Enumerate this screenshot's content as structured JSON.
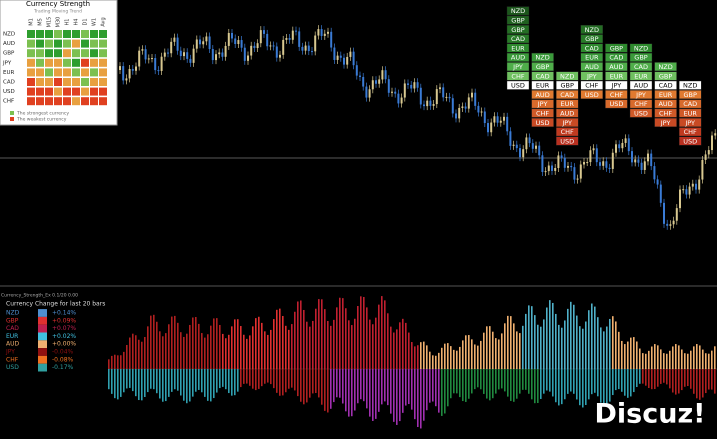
{
  "strength_panel": {
    "title": "Currency Strength",
    "subtitle": "Trading Moving Trend",
    "timeframes": [
      "M1",
      "M5",
      "M15",
      "M30",
      "H1",
      "H4",
      "D1",
      "W1",
      "Avg"
    ],
    "currencies": [
      "NZD",
      "AUD",
      "GBP",
      "JPY",
      "EUR",
      "CAD",
      "USD",
      "CHF"
    ],
    "cells": [
      [
        "#2e9e2e",
        "#2e9e2e",
        "#2e9e2e",
        "#7cc050",
        "#2e9e2e",
        "#2e9e2e",
        "#7cc050",
        "#2e9e2e",
        "#2e9e2e"
      ],
      [
        "#7cc050",
        "#2e9e2e",
        "#7cc050",
        "#2e9e2e",
        "#7cc050",
        "#e8a040",
        "#2e9e2e",
        "#7cc050",
        "#7cc050"
      ],
      [
        "#7cc050",
        "#7cc050",
        "#2e9e2e",
        "#2e9e2e",
        "#e8a040",
        "#7cc050",
        "#7cc050",
        "#2e9e2e",
        "#7cc050"
      ],
      [
        "#e8a040",
        "#7cc050",
        "#e8a040",
        "#e8a040",
        "#7cc050",
        "#2e9e2e",
        "#e04020",
        "#e8a040",
        "#e8a040"
      ],
      [
        "#e8a040",
        "#e8a040",
        "#7cc050",
        "#e8a040",
        "#e8a040",
        "#7cc050",
        "#e8a040",
        "#7cc050",
        "#e8a040"
      ],
      [
        "#e04020",
        "#e8a040",
        "#e8a040",
        "#e04020",
        "#e8a040",
        "#e8a040",
        "#7cc050",
        "#e8a040",
        "#e8a040"
      ],
      [
        "#e04020",
        "#e04020",
        "#e04020",
        "#e8a040",
        "#e04020",
        "#e04020",
        "#e8a040",
        "#e04020",
        "#e04020"
      ],
      [
        "#e04020",
        "#e04020",
        "#e04020",
        "#e04020",
        "#e04020",
        "#e8a040",
        "#e04020",
        "#e04020",
        "#e04020"
      ]
    ],
    "legend": [
      {
        "label": "The strongest currency",
        "color": "#7cc050"
      },
      {
        "label": "The weakest currency",
        "color": "#e04020"
      }
    ]
  },
  "ranking": {
    "columns": [
      {
        "strong": [
          "NZD",
          "GBP",
          "GBP",
          "CAD",
          "EUR",
          "AUD",
          "JPY",
          "CHF"
        ],
        "neutral": "USD",
        "weak": []
      },
      {
        "strong": [
          "NZD",
          "GBP",
          "CAD"
        ],
        "neutral": "EUR",
        "weak": [
          "AUD",
          "JPY",
          "CHF",
          "USD"
        ]
      },
      {
        "strong": [
          "NZD"
        ],
        "neutral": "GBP",
        "weak": [
          "CAD",
          "EUR",
          "AUD",
          "JPY",
          "CHF",
          "USD"
        ]
      },
      {
        "strong": [
          "NZD",
          "GBP",
          "CAD",
          "EUR",
          "AUD",
          "JPY"
        ],
        "neutral": "CHF",
        "weak": [
          "USD"
        ]
      },
      {
        "strong": [
          "GBP",
          "CAD",
          "AUD",
          "EUR"
        ],
        "neutral": "JPY",
        "weak": [
          "CHF",
          "USD"
        ]
      },
      {
        "strong": [
          "NZD",
          "GBP",
          "CAD",
          "EUR"
        ],
        "neutral": "AUD",
        "weak": [
          "JPY",
          "CHF",
          "USD"
        ]
      },
      {
        "strong": [
          "NZD",
          "GBP"
        ],
        "neutral": "CAD",
        "weak": [
          "EUR",
          "AUD",
          "CHF",
          "JPY"
        ]
      },
      {
        "strong": [],
        "neutral": "NZD",
        "weak": [
          "GBP",
          "CAD",
          "EUR",
          "JPY",
          "CHF",
          "USD"
        ]
      }
    ]
  },
  "indicator": {
    "caption": "Currency_Strength_Ex 0.1/20 0.00",
    "header": "Currency  Change for last 20 bars",
    "rows": [
      {
        "currency": "NZD",
        "change": "+0.14%",
        "color": "#4f8fd0"
      },
      {
        "currency": "GBP",
        "change": "+0.09%",
        "color": "#e03030"
      },
      {
        "currency": "CAD",
        "change": "+0.07%",
        "color": "#c02050"
      },
      {
        "currency": "EUR",
        "change": "+0.02%",
        "color": "#40c0e0"
      },
      {
        "currency": "AUD",
        "change": "+0.00%",
        "color": "#f0b070"
      },
      {
        "currency": "JPY",
        "change": "-0.04%",
        "color": "#901010"
      },
      {
        "currency": "CHF",
        "change": "-0.08%",
        "color": "#f07020"
      },
      {
        "currency": "USD",
        "change": "-0.17%",
        "color": "#30a0a0"
      }
    ]
  },
  "watermark": "Discuz!"
}
